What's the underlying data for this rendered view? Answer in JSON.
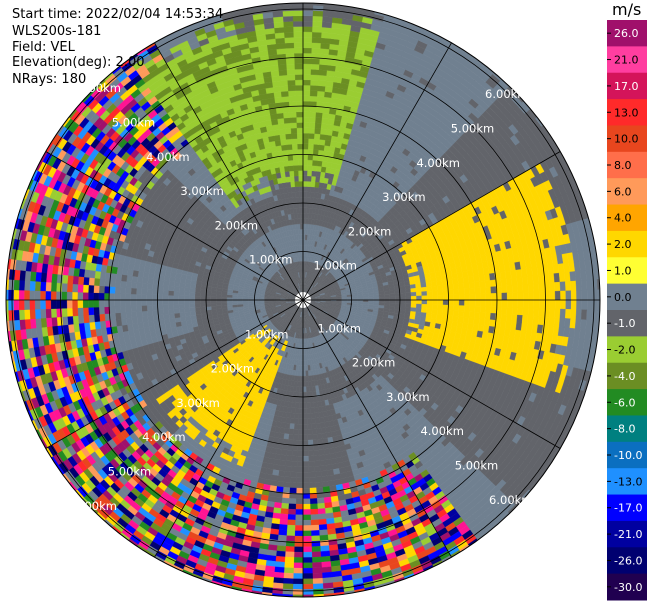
{
  "info": {
    "start_time": "Start time: 2022/02/04 14:53:34",
    "instrument": "WLS200s-181",
    "field": "Field: VEL",
    "elevation": "Elevation(deg): 2.00",
    "nrays": "NRays: 180"
  },
  "chart_data": {
    "type": "heatmap",
    "projection": "polar",
    "range_rings_km": [
      1,
      2,
      3,
      4,
      5,
      6
    ],
    "ring_labels": [
      "1.00km",
      "2.00km",
      "3.00km",
      "4.00km",
      "5.00km",
      "6.00km"
    ],
    "spokes_deg": [
      0,
      30,
      60,
      90,
      120,
      150,
      180,
      210,
      240,
      270,
      300,
      330
    ],
    "grid": true,
    "colorbar": {
      "title": "m/s",
      "ticks": [
        "26.0",
        "21.0",
        "17.0",
        "13.0",
        "10.0",
        "8.0",
        "6.0",
        "4.0",
        "2.0",
        "1.0",
        "0.0",
        "-1.0",
        "-2.0",
        "-4.0",
        "-6.0",
        "-8.0",
        "-10.0",
        "-13.0",
        "-17.0",
        "-21.0",
        "-26.0",
        "-30.0"
      ],
      "colors": [
        "#a0106b",
        "#ff3ea0",
        "#d4145a",
        "#ff2a2a",
        "#e8461e",
        "#ff6e4a",
        "#ff9a5a",
        "#ffa500",
        "#ffd700",
        "#ffff33",
        "#708090",
        "#62646a",
        "#9acd32",
        "#6b8e23",
        "#228b22",
        "#008080",
        "#0b6fc0",
        "#1f90ff",
        "#0000ff",
        "#0000a0",
        "#000070",
        "#200050"
      ]
    },
    "regions": [
      {
        "name": "inner-clutter",
        "r_km": [
          0,
          2.1
        ],
        "value": 0.0
      },
      {
        "name": "north-receding",
        "az_deg": [
          -35,
          15
        ],
        "r_km": [
          2.3,
          5.9
        ],
        "value": -1.5
      },
      {
        "name": "east-approaching",
        "az_deg": [
          60,
          110
        ],
        "r_km": [
          2.2,
          5.6
        ],
        "value": 1.5
      },
      {
        "name": "southwest-approaching",
        "az_deg": [
          200,
          235
        ],
        "r_km": [
          0.8,
          3.6
        ],
        "value": 1.5
      },
      {
        "name": "noise-west-south",
        "az_deg": [
          145,
          330
        ],
        "r_km": [
          3.8,
          6.6
        ],
        "value": "noise"
      }
    ]
  }
}
